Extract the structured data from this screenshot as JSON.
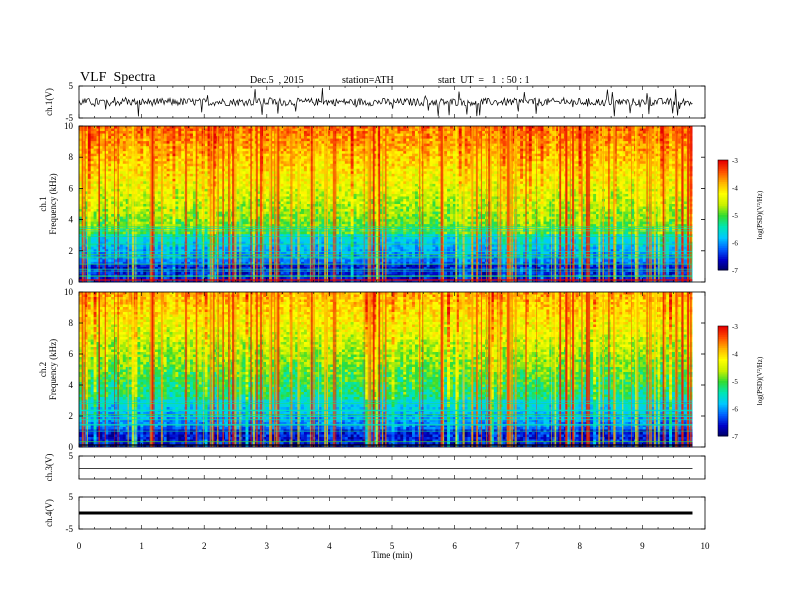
{
  "header": {
    "title": "VLF  Spectra",
    "date": "Dec.5  , 2015",
    "station": "station=ATH",
    "start_ut": "start  UT  =   1  : 50 : 1"
  },
  "chart_data": [
    {
      "panel": "ch1-waveform",
      "type": "line",
      "ylabel": "ch.1(V)",
      "ylim": [
        -5,
        5
      ],
      "yticks": [
        "5",
        "-5"
      ],
      "description_values": {
        "baseline": 0,
        "noise_amplitude": 1.2,
        "spike_max": 4.5
      }
    },
    {
      "panel": "ch1-spectrogram",
      "type": "heatmap",
      "ylabel": "ch.1\nFrequency  (kHz)",
      "ylim": [
        0,
        10
      ],
      "yticks": [
        "0",
        "2",
        "4",
        "6",
        "8",
        "10"
      ],
      "colorbar": {
        "label": "log(PSD)(V²/Hz)",
        "range": [
          -7,
          -3
        ],
        "ticks": [
          "-3",
          "-4",
          "-5",
          "-6",
          "-7"
        ]
      }
    },
    {
      "panel": "ch2-spectrogram",
      "type": "heatmap",
      "ylabel": "ch.2\nFrequency  (kHz)",
      "ylim": [
        0,
        10
      ],
      "yticks": [
        "0",
        "2",
        "4",
        "6",
        "8",
        "10"
      ],
      "colorbar": {
        "label": "log(PSD)(V²/Hz)",
        "range": [
          -7,
          -3
        ],
        "ticks": [
          "-3",
          "-4",
          "-5",
          "-6",
          "-7"
        ]
      }
    },
    {
      "panel": "ch3-waveform",
      "type": "line",
      "ylabel": "ch.3(V)",
      "ylim": [
        -5,
        5
      ],
      "yticks": [
        "5"
      ],
      "description_values": {
        "baseline": 0
      }
    },
    {
      "panel": "ch4-waveform",
      "type": "line",
      "ylabel": "ch.4(V)",
      "ylim": [
        -5,
        5
      ],
      "yticks": [
        "5",
        "-5"
      ],
      "description_values": {
        "baseline": 0
      }
    }
  ],
  "xaxis": {
    "label": "Time  (min)",
    "range": [
      0,
      10
    ],
    "ticks": [
      "0",
      "1",
      "2",
      "3",
      "4",
      "5",
      "6",
      "7",
      "8",
      "9",
      "10"
    ],
    "data_end": 9.8
  },
  "colors": {
    "colormap": [
      "#000060",
      "#0000c8",
      "#0060ff",
      "#00c8ff",
      "#00e6b4",
      "#32dc32",
      "#c8f000",
      "#ffff00",
      "#ffb400",
      "#ff5000",
      "#e60000",
      "#ffffff"
    ]
  }
}
